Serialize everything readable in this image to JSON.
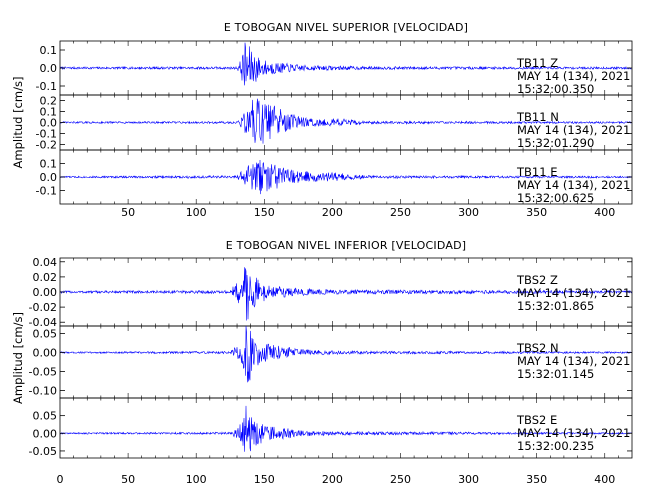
{
  "chart_data": [
    {
      "type": "line",
      "title": "E TOBOGAN NIVEL SUPERIOR [VELOCIDAD]",
      "ylabel": "Amplitud [cm/s]",
      "xlim": [
        0,
        420
      ],
      "xticks": [
        "50",
        "100",
        "150",
        "200",
        "250",
        "300",
        "350",
        "400"
      ],
      "line_color": "#0000ff",
      "channels": [
        {
          "station": "TB11",
          "component": "Z",
          "date": "MAY 14 (134), 2021",
          "time": "15:32:00.350",
          "ylim": [
            -0.15,
            0.15
          ],
          "yticks": [
            "0.1",
            "0.0",
            "-0.1"
          ],
          "envelope": [
            [
              0,
              0.006
            ],
            [
              130,
              0.007
            ],
            [
              133,
              0.05
            ],
            [
              136,
              0.16
            ],
            [
              140,
              0.11
            ],
            [
              148,
              0.05
            ],
            [
              160,
              0.03
            ],
            [
              180,
              0.015
            ],
            [
              230,
              0.008
            ],
            [
              420,
              0.006
            ]
          ]
        },
        {
          "station": "TB11",
          "component": "N",
          "date": "MAY 14 (134), 2021",
          "time": "15:32:01.290",
          "ylim": [
            -0.25,
            0.25
          ],
          "yticks": [
            "0.2",
            "0.1",
            "0.0",
            "-0.1",
            "-0.2"
          ],
          "envelope": [
            [
              0,
              0.008
            ],
            [
              130,
              0.01
            ],
            [
              135,
              0.08
            ],
            [
              140,
              0.2
            ],
            [
              145,
              0.22
            ],
            [
              150,
              0.19
            ],
            [
              160,
              0.15
            ],
            [
              170,
              0.09
            ],
            [
              180,
              0.05
            ],
            [
              195,
              0.03
            ],
            [
              205,
              0.04
            ],
            [
              210,
              0.03
            ],
            [
              230,
              0.012
            ],
            [
              420,
              0.008
            ]
          ]
        },
        {
          "station": "TB11",
          "component": "E",
          "date": "MAY 14 (134), 2021",
          "time": "15:32:00.625",
          "ylim": [
            -0.2,
            0.2
          ],
          "yticks": [
            "0.1",
            "0.0",
            "-0.1"
          ],
          "envelope": [
            [
              0,
              0.006
            ],
            [
              130,
              0.01
            ],
            [
              134,
              0.05
            ],
            [
              140,
              0.12
            ],
            [
              146,
              0.14
            ],
            [
              155,
              0.1
            ],
            [
              165,
              0.07
            ],
            [
              175,
              0.05
            ],
            [
              190,
              0.03
            ],
            [
              200,
              0.035
            ],
            [
              210,
              0.025
            ],
            [
              230,
              0.01
            ],
            [
              420,
              0.006
            ]
          ]
        }
      ]
    },
    {
      "type": "line",
      "title": "E TOBOGAN NIVEL INFERIOR [VELOCIDAD]",
      "ylabel": "Amplitud [cm/s]",
      "xlim": [
        0,
        420
      ],
      "xticks": [
        "0",
        "50",
        "100",
        "150",
        "200",
        "250",
        "300",
        "350",
        "400"
      ],
      "line_color": "#0000ff",
      "channels": [
        {
          "station": "TBS2",
          "component": "Z",
          "date": "MAY 14 (134), 2021",
          "time": "15:32:01.865",
          "ylim": [
            -0.045,
            0.045
          ],
          "yticks": [
            "0.04",
            "0.02",
            "0.00",
            "-0.02",
            "-0.04"
          ],
          "envelope": [
            [
              0,
              0.0015
            ],
            [
              125,
              0.002
            ],
            [
              128,
              0.01
            ],
            [
              133,
              0.02
            ],
            [
              137,
              0.048
            ],
            [
              140,
              0.025
            ],
            [
              150,
              0.012
            ],
            [
              160,
              0.008
            ],
            [
              175,
              0.005
            ],
            [
              200,
              0.003
            ],
            [
              420,
              0.0015
            ]
          ]
        },
        {
          "station": "TBS2",
          "component": "N",
          "date": "MAY 14 (134), 2021",
          "time": "15:32:01.145",
          "ylim": [
            -0.12,
            0.07
          ],
          "yticks": [
            "0.05",
            "0.00",
            "-0.05",
            "-0.10"
          ],
          "envelope": [
            [
              0,
              0.002
            ],
            [
              125,
              0.003
            ],
            [
              130,
              0.02
            ],
            [
              134,
              0.04
            ],
            [
              137,
              0.11
            ],
            [
              142,
              0.04
            ],
            [
              150,
              0.025
            ],
            [
              165,
              0.015
            ],
            [
              180,
              0.008
            ],
            [
              210,
              0.004
            ],
            [
              420,
              0.002
            ]
          ]
        },
        {
          "station": "TBS2",
          "component": "E",
          "date": "MAY 14 (134), 2021",
          "time": "15:32:00.235",
          "ylim": [
            -0.07,
            0.1
          ],
          "yticks": [
            "0.05",
            "0.00",
            "-0.05"
          ],
          "envelope": [
            [
              0,
              0.002
            ],
            [
              125,
              0.003
            ],
            [
              130,
              0.015
            ],
            [
              134,
              0.04
            ],
            [
              137,
              0.085
            ],
            [
              142,
              0.04
            ],
            [
              150,
              0.025
            ],
            [
              160,
              0.018
            ],
            [
              175,
              0.01
            ],
            [
              200,
              0.005
            ],
            [
              420,
              0.002
            ]
          ]
        }
      ]
    }
  ]
}
